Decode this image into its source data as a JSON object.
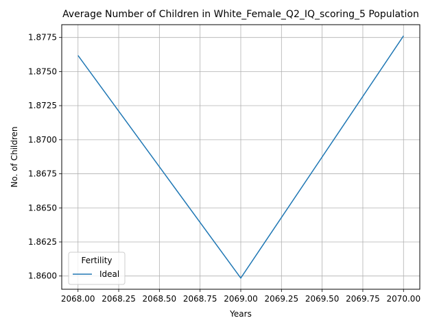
{
  "chart_data": {
    "type": "line",
    "title": "Average Number of Children in White_Female_Q2_IQ_scoring_5 Population",
    "xlabel": "Years",
    "ylabel": "No. of Children",
    "x": [
      2068.0,
      2069.0,
      2070.0
    ],
    "series": [
      {
        "name": "Ideal",
        "color": "#1f77b4",
        "values": [
          1.87618,
          1.85985,
          1.87762
        ]
      }
    ],
    "xlim": [
      2067.9,
      2070.1
    ],
    "ylim": [
      1.85903,
      1.87844
    ],
    "xticks": [
      2068.0,
      2068.25,
      2068.5,
      2068.75,
      2069.0,
      2069.25,
      2069.5,
      2069.75,
      2070.0
    ],
    "xtick_labels": [
      "2068.00",
      "2068.25",
      "2068.50",
      "2068.75",
      "2069.00",
      "2069.25",
      "2069.50",
      "2069.75",
      "2070.00"
    ],
    "yticks": [
      1.86,
      1.8625,
      1.865,
      1.8675,
      1.87,
      1.8725,
      1.875,
      1.8775
    ],
    "ytick_labels": [
      "1.8600",
      "1.8625",
      "1.8650",
      "1.8675",
      "1.8700",
      "1.8725",
      "1.8750",
      "1.8775"
    ],
    "grid": true,
    "legend": {
      "title": "Fertility",
      "placement": "lower-left"
    }
  }
}
